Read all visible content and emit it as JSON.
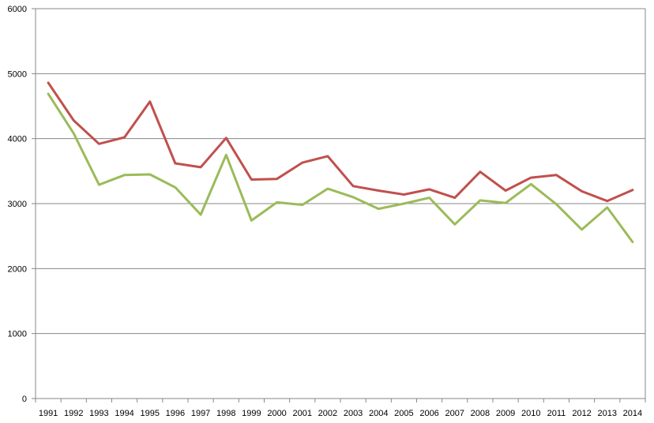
{
  "chart_data": {
    "type": "line",
    "title": "",
    "xlabel": "",
    "ylabel": "",
    "categories": [
      "1991",
      "1992",
      "1993",
      "1994",
      "1995",
      "1996",
      "1997",
      "1998",
      "1999",
      "2000",
      "2001",
      "2002",
      "2003",
      "2004",
      "2005",
      "2006",
      "2007",
      "2008",
      "2009",
      "2010",
      "2011",
      "2012",
      "2013",
      "2014"
    ],
    "ylim": [
      0,
      6000
    ],
    "yticks": [
      "0",
      "1000",
      "2000",
      "3000",
      "4000",
      "5000",
      "6000"
    ],
    "grid": true,
    "legend": "none",
    "series": [
      {
        "color": "#c0504d",
        "values": [
          4860,
          4280,
          3920,
          4020,
          4570,
          3620,
          3560,
          4010,
          3370,
          3380,
          3630,
          3730,
          3270,
          3200,
          3140,
          3220,
          3090,
          3490,
          3200,
          3400,
          3440,
          3190,
          3040,
          3210
        ]
      },
      {
        "color": "#9bbb59",
        "values": [
          4690,
          4080,
          3290,
          3440,
          3450,
          3250,
          2830,
          3750,
          2740,
          3020,
          2980,
          3230,
          3100,
          2920,
          3000,
          3090,
          2680,
          3050,
          3010,
          3300,
          2990,
          2600,
          2940,
          2410
        ]
      }
    ]
  }
}
